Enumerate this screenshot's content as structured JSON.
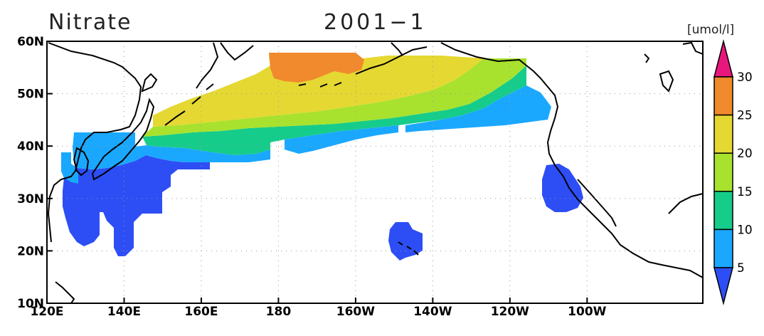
{
  "title": "Nitrate",
  "period": "2001−1",
  "units": "[umol/l]",
  "map": {
    "lon_range": [
      120,
      290
    ],
    "lat_range": [
      10,
      60
    ],
    "x_ticks": [
      {
        "lon": 120,
        "label": "120E"
      },
      {
        "lon": 140,
        "label": "140E"
      },
      {
        "lon": 160,
        "label": "160E"
      },
      {
        "lon": 180,
        "label": "180"
      },
      {
        "lon": 200,
        "label": "160W"
      },
      {
        "lon": 220,
        "label": "140W"
      },
      {
        "lon": 240,
        "label": "120W"
      },
      {
        "lon": 260,
        "label": "100W"
      }
    ],
    "y_ticks": [
      {
        "lat": 10,
        "label": "10N"
      },
      {
        "lat": 20,
        "label": "20N"
      },
      {
        "lat": 30,
        "label": "30N"
      },
      {
        "lat": 40,
        "label": "40N"
      },
      {
        "lat": 50,
        "label": "50N"
      },
      {
        "lat": 60,
        "label": "60N"
      }
    ],
    "grid": true
  },
  "colorbar": {
    "levels": [
      {
        "label": "5"
      },
      {
        "label": "10"
      },
      {
        "label": "15"
      },
      {
        "label": "20"
      },
      {
        "label": "25"
      },
      {
        "label": "30"
      }
    ],
    "colors": [
      "#2d4ef5",
      "#1aa8ff",
      "#16cc8a",
      "#a8e22e",
      "#e5d832",
      "#f08a2c",
      "#e8177d"
    ]
  },
  "colors": {
    "band_0_5": "#2d4ef5",
    "band_5_10": "#1aa8ff",
    "band_10_15": "#16cc8a",
    "band_15_20": "#a8e22e",
    "band_20_25": "#e5d832",
    "band_25_30": "#f08a2c",
    "band_gt30": "#e8177d"
  }
}
